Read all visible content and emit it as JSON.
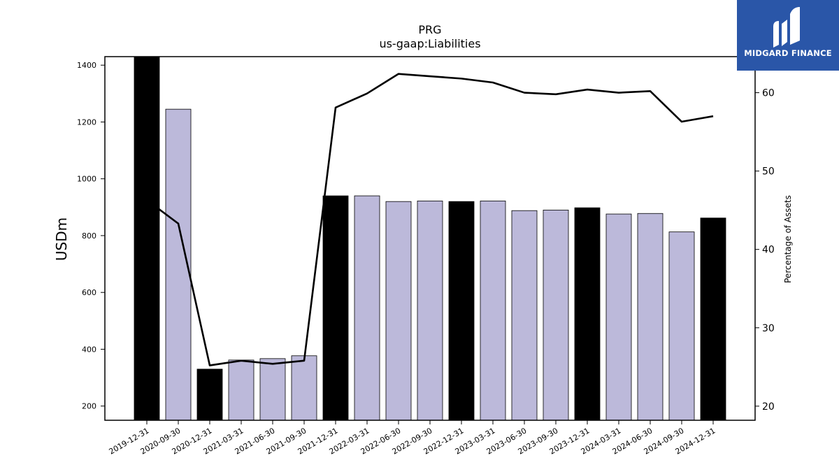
{
  "chart_data": {
    "type": "bar",
    "title": "PRG",
    "subtitle": "us-gaap:Liabilities",
    "ylabel": "USDm",
    "y2label": "Percentage of Assets",
    "ylim": [
      150,
      1430
    ],
    "y2lim": [
      18.2,
      64.6
    ],
    "yticks": [
      200,
      400,
      600,
      800,
      1000,
      1200,
      1400
    ],
    "y2ticks": [
      20,
      30,
      40,
      50,
      60
    ],
    "categories": [
      "2019-12-31",
      "2020-09-30",
      "2020-12-31",
      "2021-03-31",
      "2021-06-30",
      "2021-09-30",
      "2021-12-31",
      "2022-03-31",
      "2022-06-30",
      "2022-09-30",
      "2022-12-31",
      "2023-03-31",
      "2023-06-30",
      "2023-09-30",
      "2023-12-31",
      "2024-03-31",
      "2024-06-30",
      "2024-09-30",
      "2024-12-31"
    ],
    "series": [
      {
        "type": "bar",
        "axis": "left",
        "values": [
          1430,
          1245,
          330,
          362,
          367,
          377,
          940,
          940,
          920,
          922,
          920,
          922,
          888,
          890,
          898,
          876,
          878,
          813,
          862
        ],
        "colors": [
          "#000000",
          "#bcb9da",
          "#000000",
          "#bcb9da",
          "#bcb9da",
          "#bcb9da",
          "#000000",
          "#bcb9da",
          "#bcb9da",
          "#bcb9da",
          "#000000",
          "#bcb9da",
          "#bcb9da",
          "#bcb9da",
          "#000000",
          "#bcb9da",
          "#bcb9da",
          "#bcb9da",
          "#000000"
        ]
      },
      {
        "type": "line",
        "axis": "right",
        "color": "#000000",
        "values": [
          46.3,
          43.3,
          25.2,
          25.8,
          25.4,
          25.8,
          58.1,
          59.9,
          62.4,
          62.1,
          61.8,
          61.3,
          60.0,
          59.8,
          60.4,
          60.0,
          60.2,
          56.3,
          57.0
        ]
      }
    ],
    "grid": false,
    "legend": "none"
  },
  "logo": {
    "text": "MIDGARD FINANCE",
    "background": "#2a56a8",
    "foreground": "#ffffff"
  }
}
